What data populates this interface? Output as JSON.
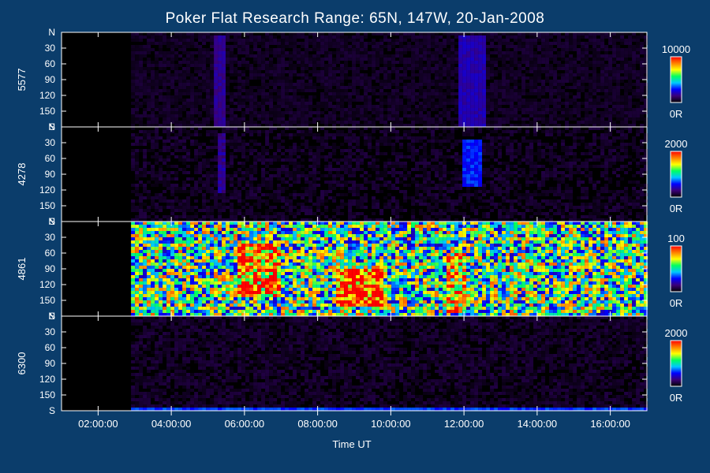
{
  "chart_data": {
    "type": "heatmap",
    "title": "Poker Flat Research Range: 65N, 147W, 20-Jan-2008",
    "xlabel": "Time UT",
    "x_ticks": [
      "02:00:00",
      "04:00:00",
      "06:00:00",
      "08:00:00",
      "10:00:00",
      "12:00:00",
      "14:00:00",
      "16:00:00"
    ],
    "x_tick_hours": [
      2,
      4,
      6,
      8,
      10,
      12,
      14,
      16
    ],
    "x_range_hours": [
      1.0,
      17.0
    ],
    "data_start_hour": 2.9,
    "data_end_hour": 17.0,
    "y_ticks": [
      "N",
      "30",
      "60",
      "90",
      "120",
      "150",
      "S"
    ],
    "y_tick_values": [
      0,
      30,
      60,
      90,
      120,
      150,
      180
    ],
    "y_range": [
      0,
      180
    ],
    "colorscale": [
      "#000000",
      "#3a0078",
      "#0000ff",
      "#00c8ff",
      "#00ff60",
      "#ffff00",
      "#ff8000",
      "#ff0000"
    ],
    "panels": [
      {
        "label": "5577",
        "colorbar_max": "10000",
        "colorbar_min": "0R",
        "background_level": 0.04,
        "noise": 0.03,
        "features": [
          {
            "t_start": 5.1,
            "t_end": 5.4,
            "y_start": 5,
            "y_end": 180,
            "level": 0.17
          },
          {
            "t_start": 11.8,
            "t_end": 12.5,
            "y_start": 5,
            "y_end": 180,
            "level": 0.2
          }
        ]
      },
      {
        "label": "4278",
        "colorbar_max": "2000",
        "colorbar_min": "0R",
        "background_level": 0.03,
        "noise": 0.05,
        "features": [
          {
            "t_start": 5.2,
            "t_end": 5.4,
            "y_start": 10,
            "y_end": 120,
            "level": 0.17
          },
          {
            "t_start": 11.9,
            "t_end": 12.4,
            "y_start": 20,
            "y_end": 110,
            "level": 0.3
          }
        ]
      },
      {
        "label": "4861",
        "colorbar_max": "100",
        "colorbar_min": "0R",
        "background_level": 0.55,
        "noise": 0.35,
        "features": [
          {
            "t_start": 5.8,
            "t_end": 6.9,
            "y_start": 40,
            "y_end": 140,
            "level": 0.85
          },
          {
            "t_start": 8.5,
            "t_end": 9.7,
            "y_start": 90,
            "y_end": 160,
            "level": 0.95
          },
          {
            "t_start": 11.5,
            "t_end": 12.0,
            "y_start": 60,
            "y_end": 170,
            "level": 0.8
          },
          {
            "t_start": 13.5,
            "t_end": 16.3,
            "y_start": 0,
            "y_end": 180,
            "level": 0.38
          }
        ]
      },
      {
        "label": "6300",
        "colorbar_max": "2000",
        "colorbar_min": "0R",
        "background_level": 0.04,
        "noise": 0.04,
        "features": [
          {
            "t_start": 2.9,
            "t_end": 17.0,
            "y_start": 170,
            "y_end": 180,
            "level": 0.32
          }
        ]
      }
    ]
  }
}
